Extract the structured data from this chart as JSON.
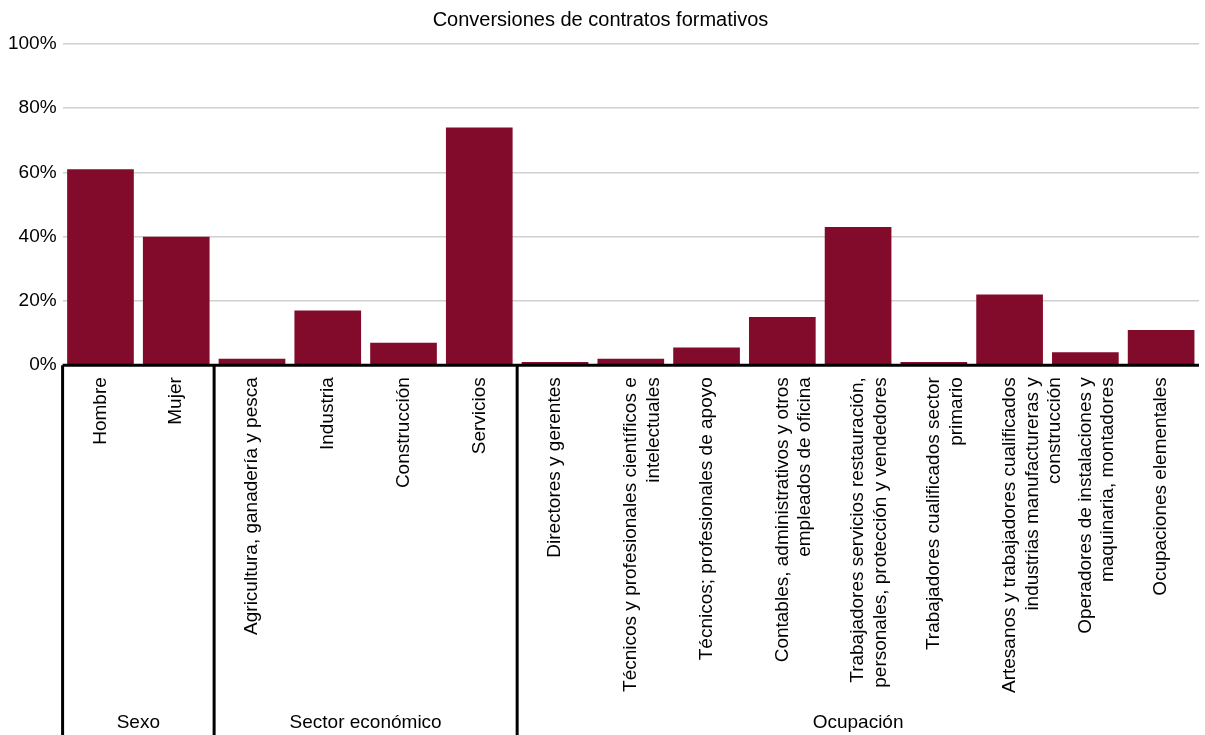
{
  "chart_data": {
    "type": "bar",
    "title": "Conversiones de contratos formativos",
    "categories": [
      "Hombre",
      "Mujer",
      "Agricultura, ganadería y pesca",
      "Industria",
      "Construcción",
      "Servicios",
      "Directores y gerentes",
      "Técnicos y profesionales científicos e intelectuales",
      "Técnicos; profesionales de apoyo",
      "Contables, administrativos y otros empleados de oficina",
      "Trabajadores servicios restauración, personales, protección y vendedores",
      "Trabajadores cualificados sector primario",
      "Artesanos y trabajadores cualificados industrias manufactureras y construcción",
      "Operadores de instalaciones y maquinaria, montadores",
      "Ocupaciones elementales"
    ],
    "values": [
      61,
      40,
      2,
      17,
      7,
      74,
      1,
      2,
      5.5,
      15,
      43,
      1,
      22,
      4,
      11
    ],
    "color": "#820a2a",
    "ylim": [
      0,
      100
    ],
    "yticks": [
      {
        "value": 0,
        "label": "0%"
      },
      {
        "value": 20,
        "label": "20%"
      },
      {
        "value": 40,
        "label": "40%"
      },
      {
        "value": 60,
        "label": "60%"
      },
      {
        "value": 80,
        "label": "80%"
      },
      {
        "value": 100,
        "label": "100%"
      }
    ],
    "grid": "y",
    "legend": false,
    "annotations": [
      "Sexo",
      "Sector económico",
      "Ocupación"
    ]
  }
}
